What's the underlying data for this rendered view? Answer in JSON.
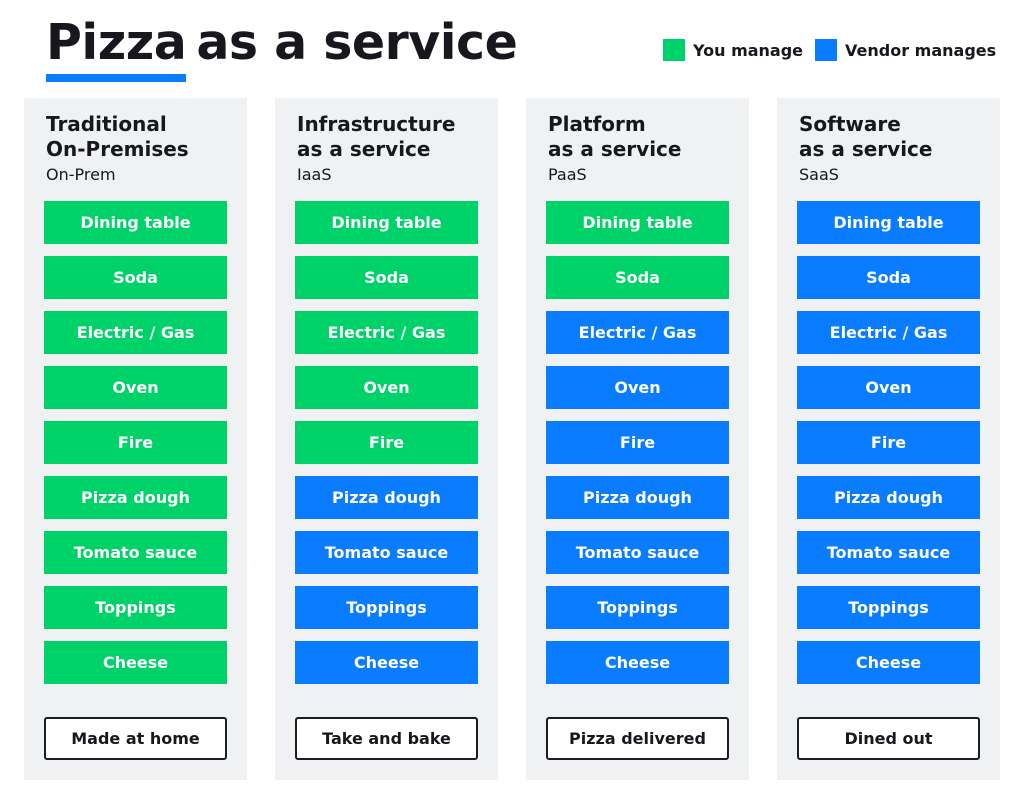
{
  "header": {
    "title_bold": "Pizza",
    "title_rest": "as a service"
  },
  "legend": {
    "you": {
      "label": "You manage",
      "color": "#00d26a"
    },
    "vendor": {
      "label": "Vendor manages",
      "color": "#0a7cff"
    }
  },
  "columns": [
    {
      "title": [
        "Traditional",
        "On-Premises"
      ],
      "abbr": "On-Prem",
      "items": [
        {
          "label": "Dining table",
          "manager": "you"
        },
        {
          "label": "Soda",
          "manager": "you"
        },
        {
          "label": "Electric / Gas",
          "manager": "you"
        },
        {
          "label": "Oven",
          "manager": "you"
        },
        {
          "label": "Fire",
          "manager": "you"
        },
        {
          "label": "Pizza dough",
          "manager": "you"
        },
        {
          "label": "Tomato sauce",
          "manager": "you"
        },
        {
          "label": "Toppings",
          "manager": "you"
        },
        {
          "label": "Cheese",
          "manager": "you"
        }
      ],
      "result": "Made at home"
    },
    {
      "title": [
        "Infrastructure",
        "as a service"
      ],
      "abbr": "IaaS",
      "items": [
        {
          "label": "Dining table",
          "manager": "you"
        },
        {
          "label": "Soda",
          "manager": "you"
        },
        {
          "label": "Electric / Gas",
          "manager": "you"
        },
        {
          "label": "Oven",
          "manager": "you"
        },
        {
          "label": "Fire",
          "manager": "you"
        },
        {
          "label": "Pizza dough",
          "manager": "vendor"
        },
        {
          "label": "Tomato sauce",
          "manager": "vendor"
        },
        {
          "label": "Toppings",
          "manager": "vendor"
        },
        {
          "label": "Cheese",
          "manager": "vendor"
        }
      ],
      "result": "Take and bake"
    },
    {
      "title": [
        "Platform",
        "as a service"
      ],
      "abbr": "PaaS",
      "items": [
        {
          "label": "Dining table",
          "manager": "you"
        },
        {
          "label": "Soda",
          "manager": "you"
        },
        {
          "label": "Electric / Gas",
          "manager": "vendor"
        },
        {
          "label": "Oven",
          "manager": "vendor"
        },
        {
          "label": "Fire",
          "manager": "vendor"
        },
        {
          "label": "Pizza dough",
          "manager": "vendor"
        },
        {
          "label": "Tomato sauce",
          "manager": "vendor"
        },
        {
          "label": "Toppings",
          "manager": "vendor"
        },
        {
          "label": "Cheese",
          "manager": "vendor"
        }
      ],
      "result": "Pizza delivered"
    },
    {
      "title": [
        "Software",
        "as a service"
      ],
      "abbr": "SaaS",
      "items": [
        {
          "label": "Dining table",
          "manager": "vendor"
        },
        {
          "label": "Soda",
          "manager": "vendor"
        },
        {
          "label": "Electric / Gas",
          "manager": "vendor"
        },
        {
          "label": "Oven",
          "manager": "vendor"
        },
        {
          "label": "Fire",
          "manager": "vendor"
        },
        {
          "label": "Pizza dough",
          "manager": "vendor"
        },
        {
          "label": "Tomato sauce",
          "manager": "vendor"
        },
        {
          "label": "Toppings",
          "manager": "vendor"
        },
        {
          "label": "Cheese",
          "manager": "vendor"
        }
      ],
      "result": "Dined out"
    }
  ]
}
